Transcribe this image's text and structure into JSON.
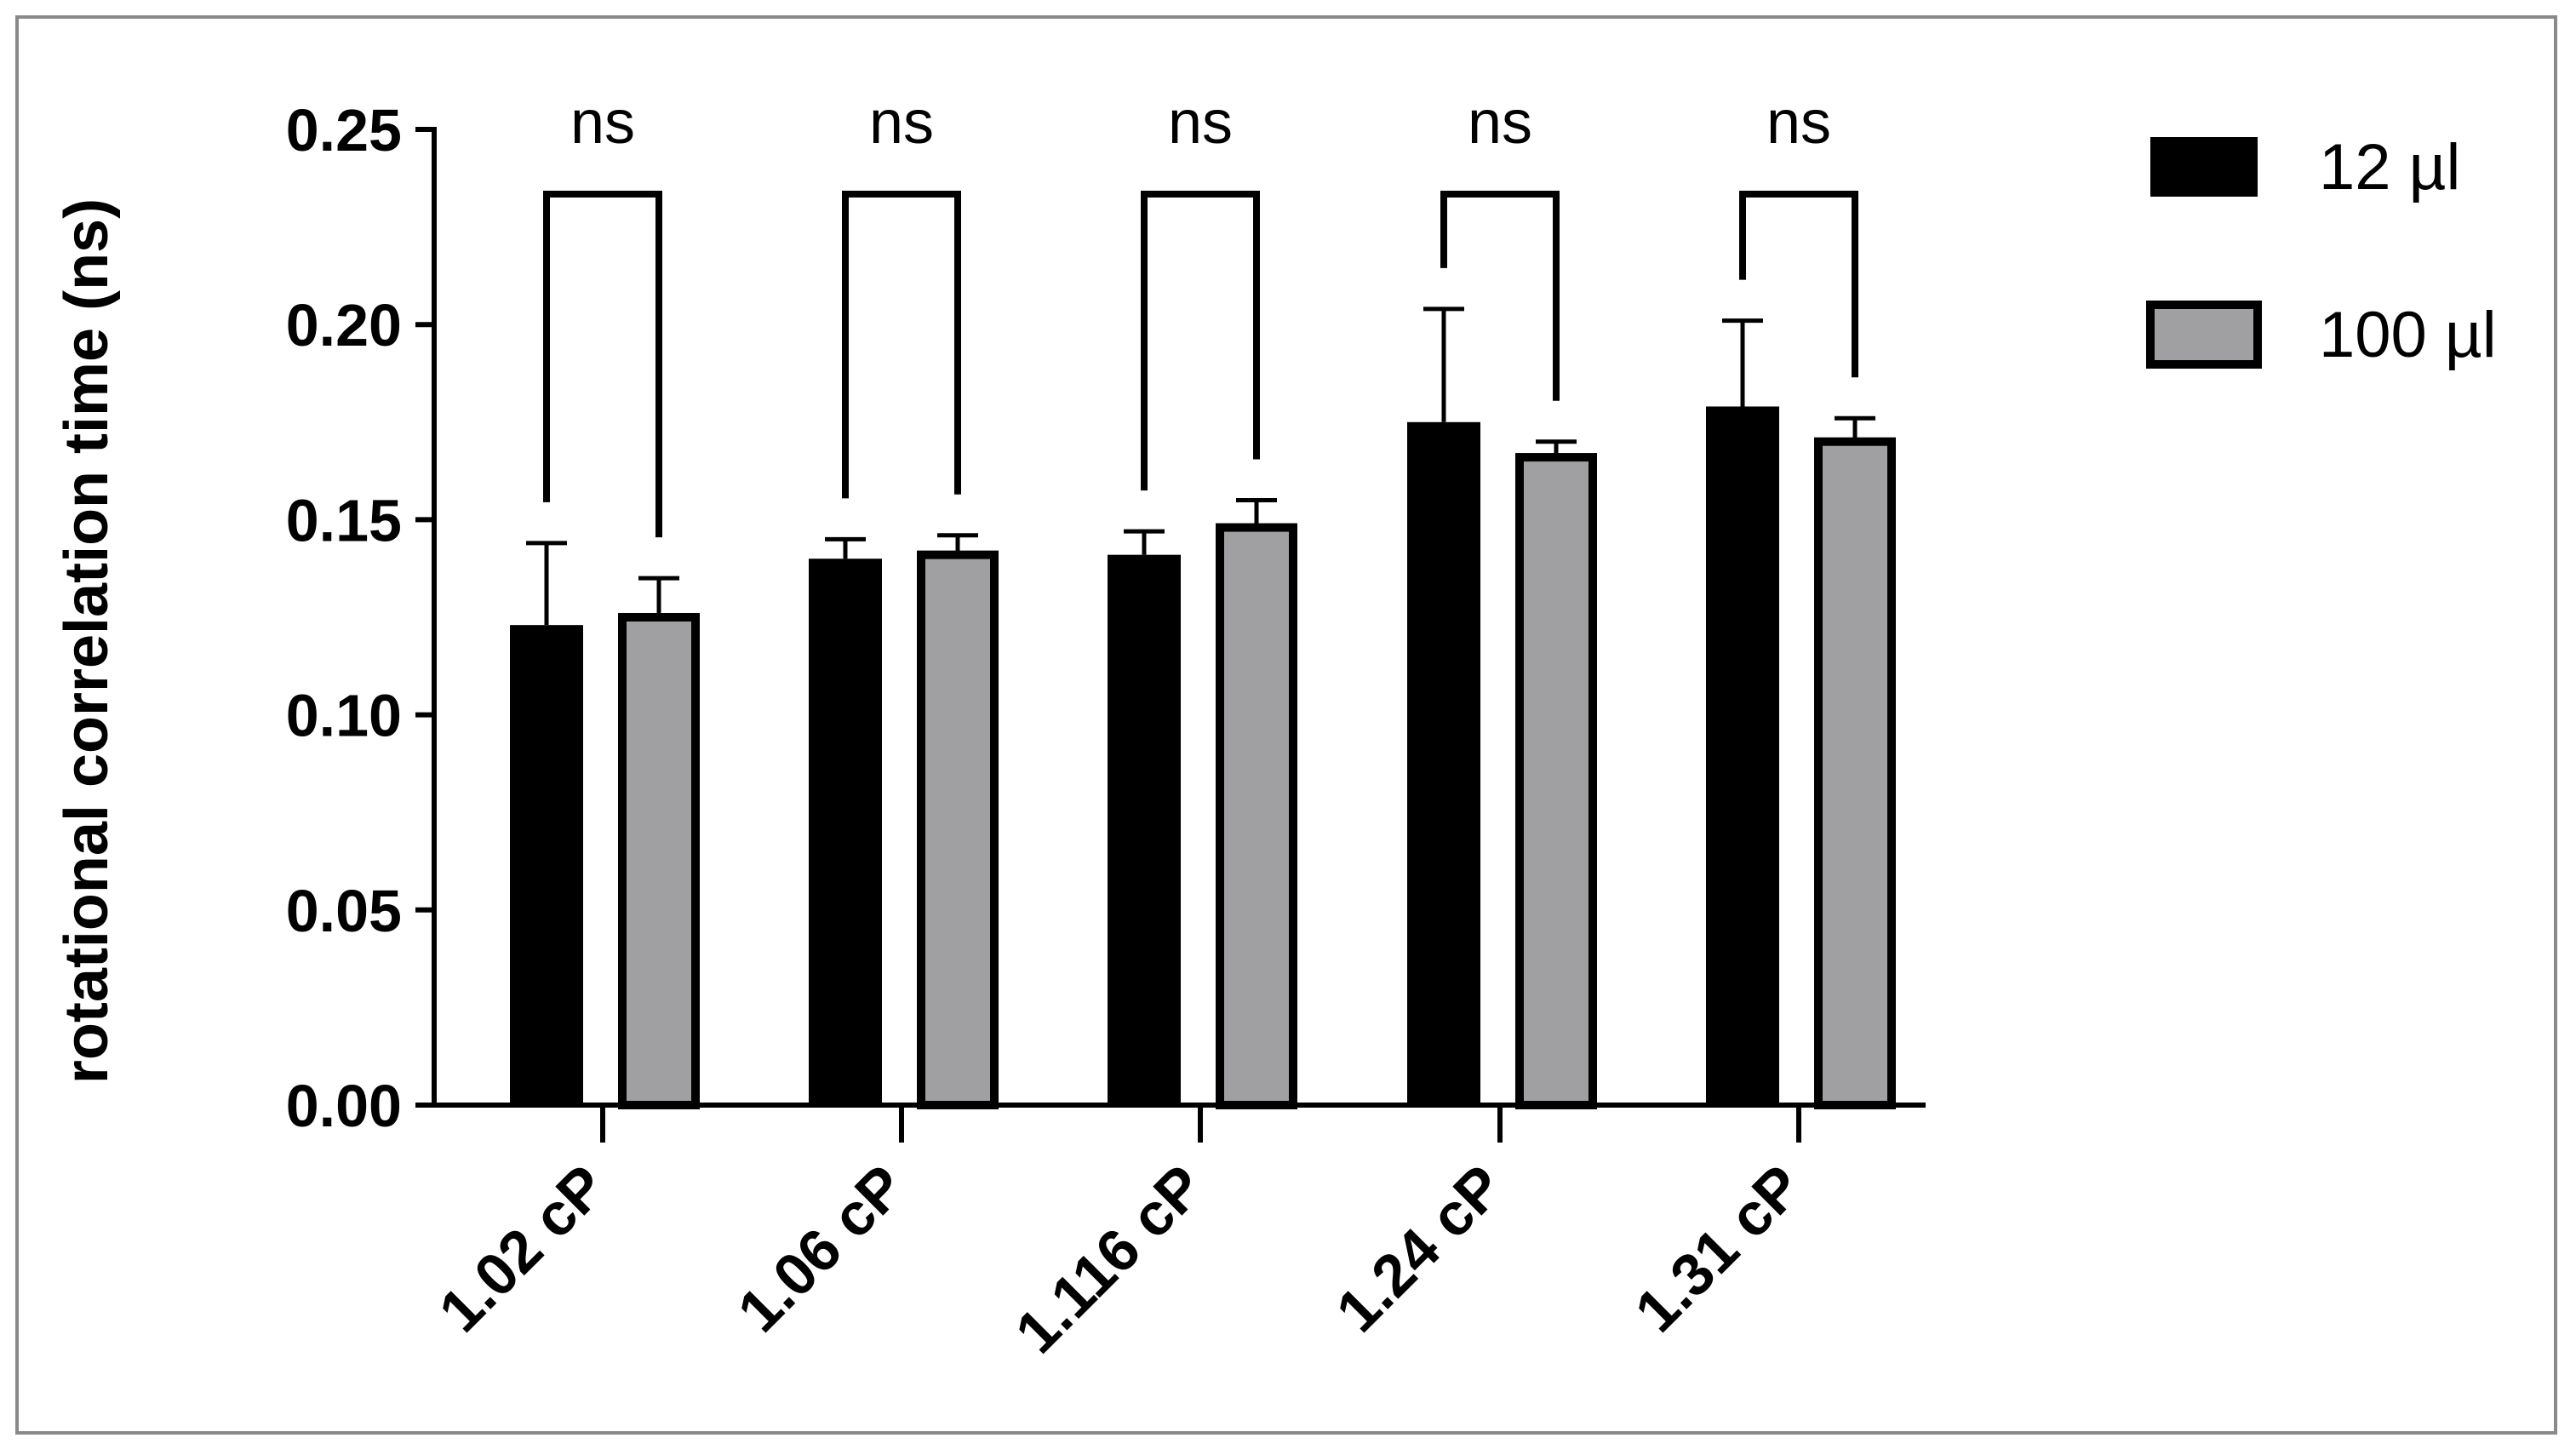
{
  "chart_data": {
    "type": "bar",
    "title": "",
    "xlabel": "",
    "ylabel": "rotational correlation time (ns)",
    "ylim": [
      0,
      0.25
    ],
    "yticks": [
      "0.00",
      "0.05",
      "0.10",
      "0.15",
      "0.20",
      "0.25"
    ],
    "categories": [
      "1.02 cP",
      "1.06 cP",
      "1.116 cP",
      "1.24 cP",
      "1.31 cP"
    ],
    "series": [
      {
        "name": "12 µl",
        "color": "#000000",
        "values": [
          0.123,
          0.14,
          0.141,
          0.175,
          0.179
        ],
        "errors": [
          0.021,
          0.005,
          0.006,
          0.029,
          0.022
        ]
      },
      {
        "name": "100 µl",
        "color": "#a0a0a3",
        "values": [
          0.125,
          0.141,
          0.148,
          0.166,
          0.17
        ],
        "errors": [
          0.01,
          0.005,
          0.007,
          0.004,
          0.006
        ]
      }
    ],
    "significance": [
      "ns",
      "ns",
      "ns",
      "ns",
      "ns"
    ],
    "legend_position": "top-right",
    "grid": false
  }
}
